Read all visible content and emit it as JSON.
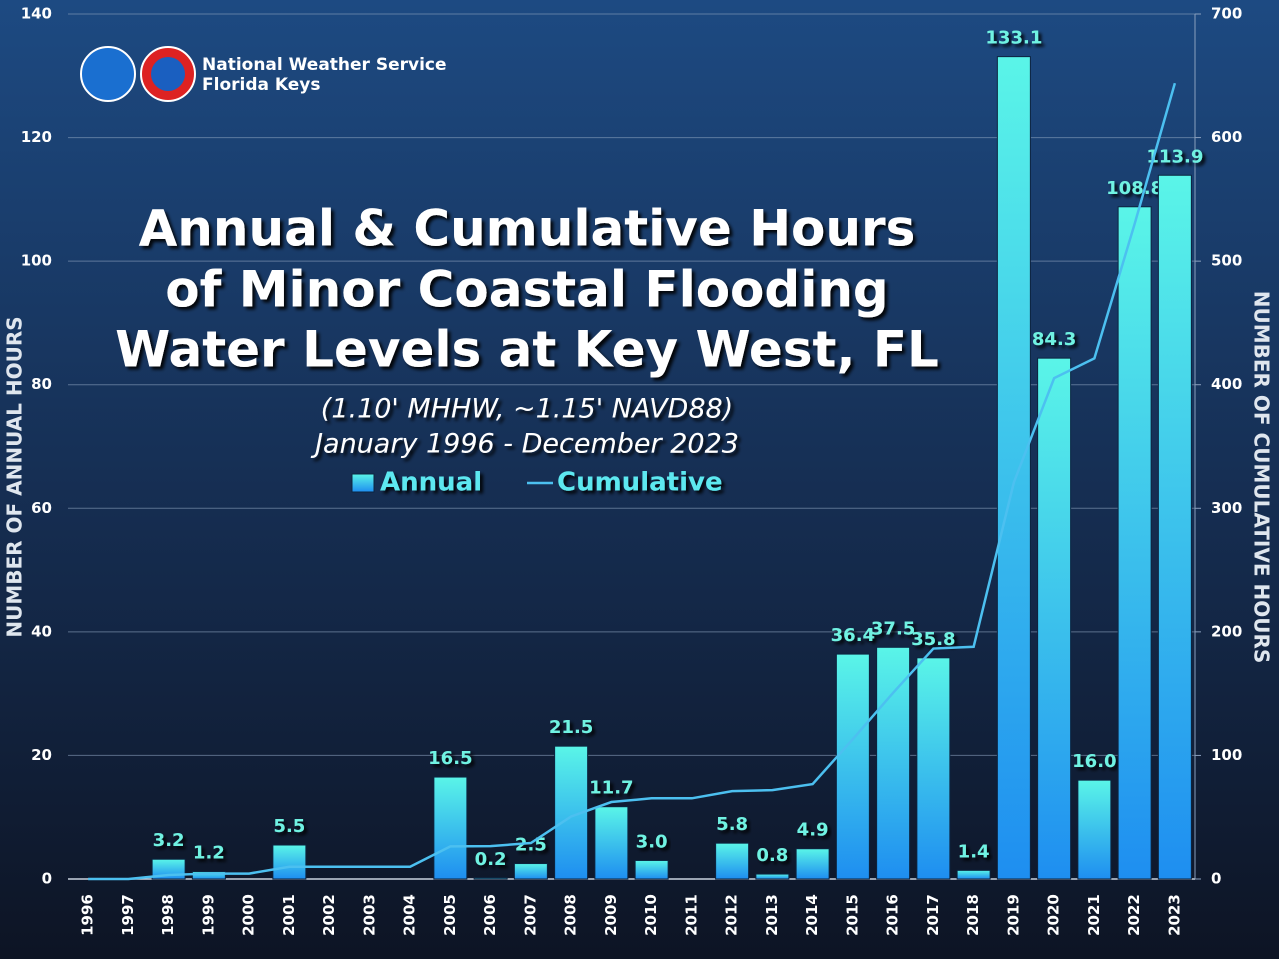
{
  "chart_data": {
    "type": "bar",
    "title": [
      "Annual & Cumulative Hours",
      "of Minor Coastal Flooding",
      "Water Levels at Key West, FL"
    ],
    "subtitle": [
      "(1.10' MHHW, ~1.15' NAVD88)",
      "January 1996 - December 2023"
    ],
    "logo_text": [
      "National Weather Service",
      "Florida Keys"
    ],
    "ylabel": "NUMBER OF ANNUAL HOURS",
    "y2label": "NUMBER OF CUMULATIVE HOURS",
    "categories": [
      "1996",
      "1997",
      "1998",
      "1999",
      "2000",
      "2001",
      "2002",
      "2003",
      "2004",
      "2005",
      "2006",
      "2007",
      "2008",
      "2009",
      "2010",
      "2011",
      "2012",
      "2013",
      "2014",
      "2015",
      "2016",
      "2017",
      "2018",
      "2019",
      "2020",
      "2021",
      "2022",
      "2023"
    ],
    "series": [
      {
        "name": "Annual",
        "type": "bar",
        "color": "#2aa8f0",
        "values": [
          0,
          0,
          3.2,
          1.2,
          0,
          5.5,
          0,
          0,
          0,
          16.5,
          0.2,
          2.5,
          21.5,
          11.7,
          3.0,
          0,
          5.8,
          0.8,
          4.9,
          36.4,
          37.5,
          35.8,
          1.4,
          133.1,
          84.3,
          16.0,
          108.8,
          113.9
        ],
        "value_labels": [
          null,
          null,
          "3.2",
          "1.2",
          null,
          "5.5",
          null,
          null,
          null,
          "16.5",
          "0.2",
          "2.5",
          "21.5",
          "11.7",
          "3.0",
          null,
          "5.8",
          "0.8",
          "4.9",
          "36.4",
          "37.5",
          "35.8",
          "1.4",
          "133.1",
          "84.3",
          "16.0",
          "108.8",
          "113.9"
        ]
      },
      {
        "name": "Cumulative",
        "type": "line",
        "axis": "y2",
        "color": "#4cc0f0",
        "values": [
          0,
          0,
          3.2,
          4.4,
          4.4,
          9.9,
          9.9,
          9.9,
          9.9,
          26.4,
          26.6,
          29.1,
          50.6,
          62.3,
          65.3,
          65.3,
          71.1,
          71.9,
          76.8,
          113.2,
          150.7,
          186.5,
          187.9,
          321.0,
          405.3,
          421.3,
          530.1,
          644.0
        ]
      }
    ],
    "ylim": [
      0,
      140
    ],
    "yticks": [
      0,
      20,
      40,
      60,
      80,
      100,
      120,
      140
    ],
    "y2lim": [
      0,
      700
    ],
    "y2ticks": [
      0,
      100,
      200,
      300,
      400,
      500,
      600,
      700
    ],
    "grid": true
  }
}
